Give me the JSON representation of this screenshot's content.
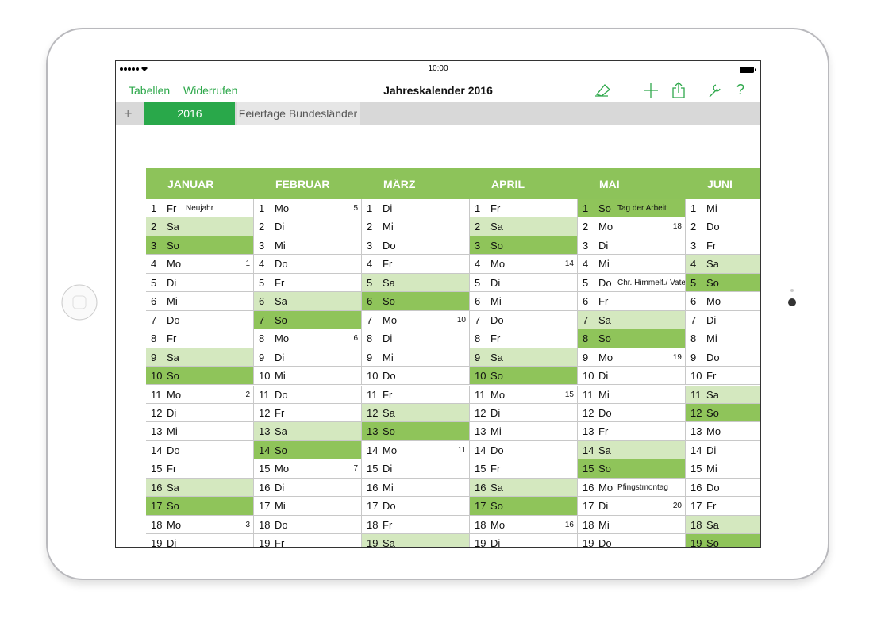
{
  "status_bar": {
    "time": "10:00"
  },
  "toolbar": {
    "back": "Tabellen",
    "undo": "Widerrufen",
    "title": "Jahreskalender 2016",
    "help": "?"
  },
  "tabs": {
    "add": "+",
    "items": [
      "2016",
      "Feiertage Bundesländer"
    ]
  },
  "calendar": {
    "weekend_colors": {
      "Sa": "#d4e8bf",
      "So": "#8fc45a"
    },
    "months": [
      {
        "name": "JANUAR",
        "days": [
          {
            "d": 1,
            "wd": "Fr",
            "note": "Neujahr"
          },
          {
            "d": 2,
            "wd": "Sa"
          },
          {
            "d": 3,
            "wd": "So"
          },
          {
            "d": 4,
            "wd": "Mo",
            "week": 1
          },
          {
            "d": 5,
            "wd": "Di"
          },
          {
            "d": 6,
            "wd": "Mi"
          },
          {
            "d": 7,
            "wd": "Do"
          },
          {
            "d": 8,
            "wd": "Fr"
          },
          {
            "d": 9,
            "wd": "Sa"
          },
          {
            "d": 10,
            "wd": "So"
          },
          {
            "d": 11,
            "wd": "Mo",
            "week": 2
          },
          {
            "d": 12,
            "wd": "Di"
          },
          {
            "d": 13,
            "wd": "Mi"
          },
          {
            "d": 14,
            "wd": "Do"
          },
          {
            "d": 15,
            "wd": "Fr"
          },
          {
            "d": 16,
            "wd": "Sa"
          },
          {
            "d": 17,
            "wd": "So"
          },
          {
            "d": 18,
            "wd": "Mo",
            "week": 3
          },
          {
            "d": 19,
            "wd": "Di"
          }
        ]
      },
      {
        "name": "FEBRUAR",
        "days": [
          {
            "d": 1,
            "wd": "Mo",
            "week": 5
          },
          {
            "d": 2,
            "wd": "Di"
          },
          {
            "d": 3,
            "wd": "Mi"
          },
          {
            "d": 4,
            "wd": "Do"
          },
          {
            "d": 5,
            "wd": "Fr"
          },
          {
            "d": 6,
            "wd": "Sa"
          },
          {
            "d": 7,
            "wd": "So"
          },
          {
            "d": 8,
            "wd": "Mo",
            "week": 6
          },
          {
            "d": 9,
            "wd": "Di"
          },
          {
            "d": 10,
            "wd": "Mi"
          },
          {
            "d": 11,
            "wd": "Do"
          },
          {
            "d": 12,
            "wd": "Fr"
          },
          {
            "d": 13,
            "wd": "Sa"
          },
          {
            "d": 14,
            "wd": "So"
          },
          {
            "d": 15,
            "wd": "Mo",
            "week": 7
          },
          {
            "d": 16,
            "wd": "Di"
          },
          {
            "d": 17,
            "wd": "Mi"
          },
          {
            "d": 18,
            "wd": "Do"
          },
          {
            "d": 19,
            "wd": "Fr"
          }
        ]
      },
      {
        "name": "MÄRZ",
        "days": [
          {
            "d": 1,
            "wd": "Di"
          },
          {
            "d": 2,
            "wd": "Mi"
          },
          {
            "d": 3,
            "wd": "Do"
          },
          {
            "d": 4,
            "wd": "Fr"
          },
          {
            "d": 5,
            "wd": "Sa"
          },
          {
            "d": 6,
            "wd": "So"
          },
          {
            "d": 7,
            "wd": "Mo",
            "week": 10
          },
          {
            "d": 8,
            "wd": "Di"
          },
          {
            "d": 9,
            "wd": "Mi"
          },
          {
            "d": 10,
            "wd": "Do"
          },
          {
            "d": 11,
            "wd": "Fr"
          },
          {
            "d": 12,
            "wd": "Sa"
          },
          {
            "d": 13,
            "wd": "So"
          },
          {
            "d": 14,
            "wd": "Mo",
            "week": 11
          },
          {
            "d": 15,
            "wd": "Di"
          },
          {
            "d": 16,
            "wd": "Mi"
          },
          {
            "d": 17,
            "wd": "Do"
          },
          {
            "d": 18,
            "wd": "Fr"
          },
          {
            "d": 19,
            "wd": "Sa"
          }
        ]
      },
      {
        "name": "APRIL",
        "days": [
          {
            "d": 1,
            "wd": "Fr"
          },
          {
            "d": 2,
            "wd": "Sa"
          },
          {
            "d": 3,
            "wd": "So"
          },
          {
            "d": 4,
            "wd": "Mo",
            "week": 14
          },
          {
            "d": 5,
            "wd": "Di"
          },
          {
            "d": 6,
            "wd": "Mi"
          },
          {
            "d": 7,
            "wd": "Do"
          },
          {
            "d": 8,
            "wd": "Fr"
          },
          {
            "d": 9,
            "wd": "Sa"
          },
          {
            "d": 10,
            "wd": "So"
          },
          {
            "d": 11,
            "wd": "Mo",
            "week": 15
          },
          {
            "d": 12,
            "wd": "Di"
          },
          {
            "d": 13,
            "wd": "Mi"
          },
          {
            "d": 14,
            "wd": "Do"
          },
          {
            "d": 15,
            "wd": "Fr"
          },
          {
            "d": 16,
            "wd": "Sa"
          },
          {
            "d": 17,
            "wd": "So"
          },
          {
            "d": 18,
            "wd": "Mo",
            "week": 16
          },
          {
            "d": 19,
            "wd": "Di"
          }
        ]
      },
      {
        "name": "MAI",
        "days": [
          {
            "d": 1,
            "wd": "So",
            "note": "Tag der Arbeit"
          },
          {
            "d": 2,
            "wd": "Mo",
            "week": 18
          },
          {
            "d": 3,
            "wd": "Di"
          },
          {
            "d": 4,
            "wd": "Mi"
          },
          {
            "d": 5,
            "wd": "Do",
            "note": "Chr. Himmelf./ Vatertag"
          },
          {
            "d": 6,
            "wd": "Fr"
          },
          {
            "d": 7,
            "wd": "Sa"
          },
          {
            "d": 8,
            "wd": "So"
          },
          {
            "d": 9,
            "wd": "Mo",
            "week": 19
          },
          {
            "d": 10,
            "wd": "Di"
          },
          {
            "d": 11,
            "wd": "Mi"
          },
          {
            "d": 12,
            "wd": "Do"
          },
          {
            "d": 13,
            "wd": "Fr"
          },
          {
            "d": 14,
            "wd": "Sa"
          },
          {
            "d": 15,
            "wd": "So"
          },
          {
            "d": 16,
            "wd": "Mo",
            "note": "Pfingstmontag"
          },
          {
            "d": 17,
            "wd": "Di",
            "week": 20
          },
          {
            "d": 18,
            "wd": "Mi"
          },
          {
            "d": 19,
            "wd": "Do"
          }
        ]
      },
      {
        "name": "JUNI",
        "days": [
          {
            "d": 1,
            "wd": "Mi"
          },
          {
            "d": 2,
            "wd": "Do"
          },
          {
            "d": 3,
            "wd": "Fr"
          },
          {
            "d": 4,
            "wd": "Sa"
          },
          {
            "d": 5,
            "wd": "So"
          },
          {
            "d": 6,
            "wd": "Mo"
          },
          {
            "d": 7,
            "wd": "Di"
          },
          {
            "d": 8,
            "wd": "Mi"
          },
          {
            "d": 9,
            "wd": "Do"
          },
          {
            "d": 10,
            "wd": "Fr"
          },
          {
            "d": 11,
            "wd": "Sa"
          },
          {
            "d": 12,
            "wd": "So"
          },
          {
            "d": 13,
            "wd": "Mo"
          },
          {
            "d": 14,
            "wd": "Di"
          },
          {
            "d": 15,
            "wd": "Mi"
          },
          {
            "d": 16,
            "wd": "Do"
          },
          {
            "d": 17,
            "wd": "Fr"
          },
          {
            "d": 18,
            "wd": "Sa"
          },
          {
            "d": 19,
            "wd": "So"
          }
        ]
      }
    ]
  }
}
